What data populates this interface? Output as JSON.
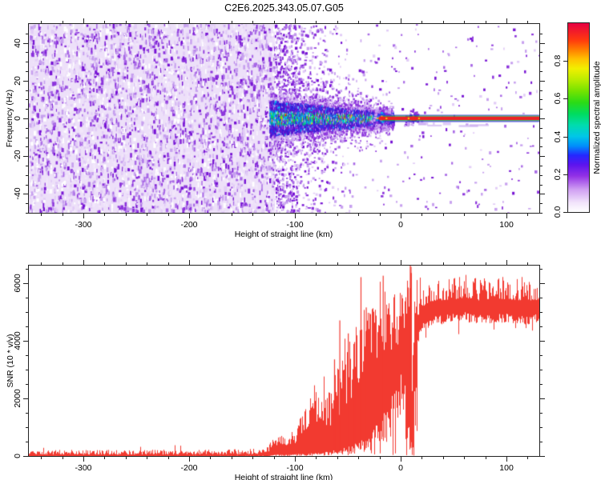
{
  "title": "C2E6.2025.343.05.07.G05",
  "figure": {
    "background": "#ffffff",
    "frame_color": "#222222"
  },
  "chart_data": [
    {
      "id": "spectrogram",
      "type": "heatmap",
      "xlabel": "Height of straight line (km)",
      "ylabel": "Frequency (Hz)",
      "xlim": [
        -351.5,
        131
      ],
      "ylim": [
        -50,
        50
      ],
      "x_major_ticks": [
        -300,
        -200,
        -100,
        0,
        100
      ],
      "x_tick_labels": [
        "-300",
        "-200",
        "-100",
        "0",
        "100"
      ],
      "x_minor_step": 20,
      "y_major_ticks": [
        40,
        20,
        0,
        -20,
        -40
      ],
      "y_tick_labels": [
        "40",
        "20",
        "0",
        "-20",
        "-40"
      ],
      "y_minor_step": 5,
      "colorbar": {
        "label": "Normalized spectral amplitude",
        "range": [
          0,
          1
        ],
        "tick_values": [
          0,
          0.2,
          0.4,
          0.6,
          0.8
        ],
        "tick_labels": [
          "0.0",
          "0.2",
          "0.4",
          "0.6",
          "0.8"
        ],
        "stops": [
          [
            0,
            "#ffffff"
          ],
          [
            0.05,
            "#f1e3fb"
          ],
          [
            0.12,
            "#cf9ef2"
          ],
          [
            0.19,
            "#9332e6"
          ],
          [
            0.25,
            "#5c14ee"
          ],
          [
            0.3,
            "#2427ff"
          ],
          [
            0.35,
            "#008ffb"
          ],
          [
            0.4,
            "#00c6e8"
          ],
          [
            0.46,
            "#00dcae"
          ],
          [
            0.52,
            "#00dc5f"
          ],
          [
            0.58,
            "#2bdb16"
          ],
          [
            0.64,
            "#74e300"
          ],
          [
            0.7,
            "#b9ec00"
          ],
          [
            0.76,
            "#f2ef00"
          ],
          [
            0.81,
            "#ffc100"
          ],
          [
            0.86,
            "#ff7d00"
          ],
          [
            0.91,
            "#ff3a0e"
          ],
          [
            1,
            "#e60042"
          ]
        ]
      },
      "features": {
        "noise_field": {
          "x_range": [
            -351.5,
            -119
          ],
          "base": "#ede0f9",
          "palette": [
            "#ffffff",
            "#f2e7fb",
            "#e2ccf7",
            "#c7a0ef",
            "#a868e6",
            "#8c33dc",
            "#7713d4"
          ],
          "weights": [
            0.16,
            0.2,
            0.17,
            0.16,
            0.12,
            0.11,
            0.08
          ]
        },
        "noise_fade_zones": [
          [
            -119,
            -98,
            0.28
          ],
          [
            -98,
            -72,
            0.09
          ],
          [
            -72,
            -48,
            0.03
          ],
          [
            -48,
            -28,
            0.007
          ],
          [
            -28,
            131,
            0.0008
          ]
        ],
        "signal_band": {
          "x_range": [
            -124,
            -8
          ],
          "center_hz": 0,
          "sigma_hz_start": 7,
          "sigma_hz_end": 2,
          "core_colors": [
            "#00c8f0",
            "#00dc50",
            "#2b3cee",
            "#3c14d2",
            "#8ae800",
            "#f0d800",
            "#f02020"
          ],
          "core_weights": [
            0.28,
            0.2,
            0.18,
            0.15,
            0.07,
            0.05,
            0.07
          ],
          "edge_colors": [
            "#3c14d2",
            "#2b3cee",
            "#6a14cc",
            "#00c8f0",
            "#8c33dc"
          ],
          "edge_weights": [
            0.35,
            0.2,
            0.3,
            0.08,
            0.07
          ],
          "halo_colors": [
            "#8c33dc",
            "#c7a0ef",
            "#e2ccf7"
          ],
          "halo_weights": [
            0.45,
            0.33,
            0.22
          ]
        },
        "carrier_line": {
          "x_range": [
            -17,
            131
          ],
          "center_hz": 0,
          "stripes": [
            [
              "#3a23e0",
              1.0
            ],
            [
              "#00bb44",
              1.1
            ],
            [
              "#ee2125",
              4.6
            ],
            [
              "#00bb44",
              1.1
            ],
            [
              "#3a23e0",
              1.0
            ]
          ]
        },
        "blobs": [
          {
            "x_km": -18,
            "sx": 5.5,
            "sy": 7.0,
            "n": 85,
            "core_rx": 4.0,
            "core_ry": 2.4
          },
          {
            "x_km": 12,
            "sx": 4.2,
            "sy": 5.0,
            "n": 55,
            "core_rx": 5.0,
            "core_ry": 2.6
          }
        ]
      }
    },
    {
      "id": "snr",
      "type": "line",
      "xlabel": "Height of straight line (km)",
      "ylabel": "SNR (10 * v/v)",
      "xlim": [
        -351.5,
        131
      ],
      "ylim": [
        0,
        6600
      ],
      "x_major_ticks": [
        -300,
        -200,
        -100,
        0,
        100
      ],
      "x_tick_labels": [
        "-300",
        "-200",
        "-100",
        "0",
        "100"
      ],
      "x_minor_step": 20,
      "y_major_ticks": [
        0,
        2000,
        4000,
        6000
      ],
      "y_tick_labels": [
        "0",
        "2000",
        "4000",
        "6000"
      ],
      "y_minor_step": 500,
      "line_color": "#f23a30",
      "envelope": [
        [
          -351,
          35,
          210
        ],
        [
          -300,
          35,
          215
        ],
        [
          -250,
          35,
          210
        ],
        [
          -200,
          38,
          225
        ],
        [
          -160,
          40,
          230
        ],
        [
          -140,
          42,
          265
        ],
        [
          -128,
          48,
          340
        ],
        [
          -121,
          55,
          540
        ],
        [
          -115,
          60,
          800
        ],
        [
          -109,
          60,
          570
        ],
        [
          -103,
          70,
          700
        ],
        [
          -99,
          80,
          980
        ],
        [
          -95,
          90,
          1450
        ],
        [
          -91,
          85,
          1750
        ],
        [
          -87,
          110,
          1620
        ],
        [
          -83,
          130,
          1950
        ],
        [
          -79,
          140,
          2150
        ],
        [
          -75,
          115,
          2080
        ],
        [
          -71,
          170,
          2380
        ],
        [
          -67,
          155,
          2550
        ],
        [
          -63,
          255,
          2850
        ],
        [
          -59,
          285,
          3150
        ],
        [
          -55,
          265,
          3450
        ],
        [
          -51,
          385,
          3750
        ],
        [
          -47,
          345,
          4150
        ],
        [
          -43,
          490,
          4450
        ],
        [
          -39,
          560,
          4850
        ],
        [
          -35,
          720,
          5150
        ],
        [
          -31,
          660,
          5250
        ],
        [
          -27,
          1020,
          5300
        ],
        [
          -23,
          1320,
          5450
        ],
        [
          -19,
          1520,
          6250
        ],
        [
          -15,
          1820,
          5750
        ],
        [
          -11,
          2120,
          5550
        ],
        [
          -7,
          2520,
          5650
        ],
        [
          -3,
          2820,
          5720
        ],
        [
          1,
          3020,
          5780
        ],
        [
          5,
          2720,
          5950
        ],
        [
          8,
          900,
          6600
        ],
        [
          10,
          600,
          6600
        ],
        [
          10.8,
          200,
          760
        ],
        [
          11.6,
          520,
          5950
        ],
        [
          13,
          3620,
          6250
        ],
        [
          16,
          4350,
          6150
        ],
        [
          20,
          4750,
          6200
        ],
        [
          26,
          4950,
          6250
        ],
        [
          34,
          5050,
          6200
        ],
        [
          45,
          5100,
          6150
        ],
        [
          60,
          5150,
          6250
        ],
        [
          75,
          5050,
          6150
        ],
        [
          90,
          5150,
          6200
        ],
        [
          105,
          5100,
          6150
        ],
        [
          118,
          5050,
          6200
        ],
        [
          131,
          5100,
          6150
        ]
      ],
      "spikes": [
        [
          -63,
          3350
        ],
        [
          -58,
          4700
        ],
        [
          -50,
          4250
        ],
        [
          -44,
          3950
        ],
        [
          -38,
          6200
        ],
        [
          -33,
          5150
        ],
        [
          -17,
          6250
        ],
        [
          8.6,
          6600
        ],
        [
          9.3,
          6560
        ]
      ]
    }
  ]
}
